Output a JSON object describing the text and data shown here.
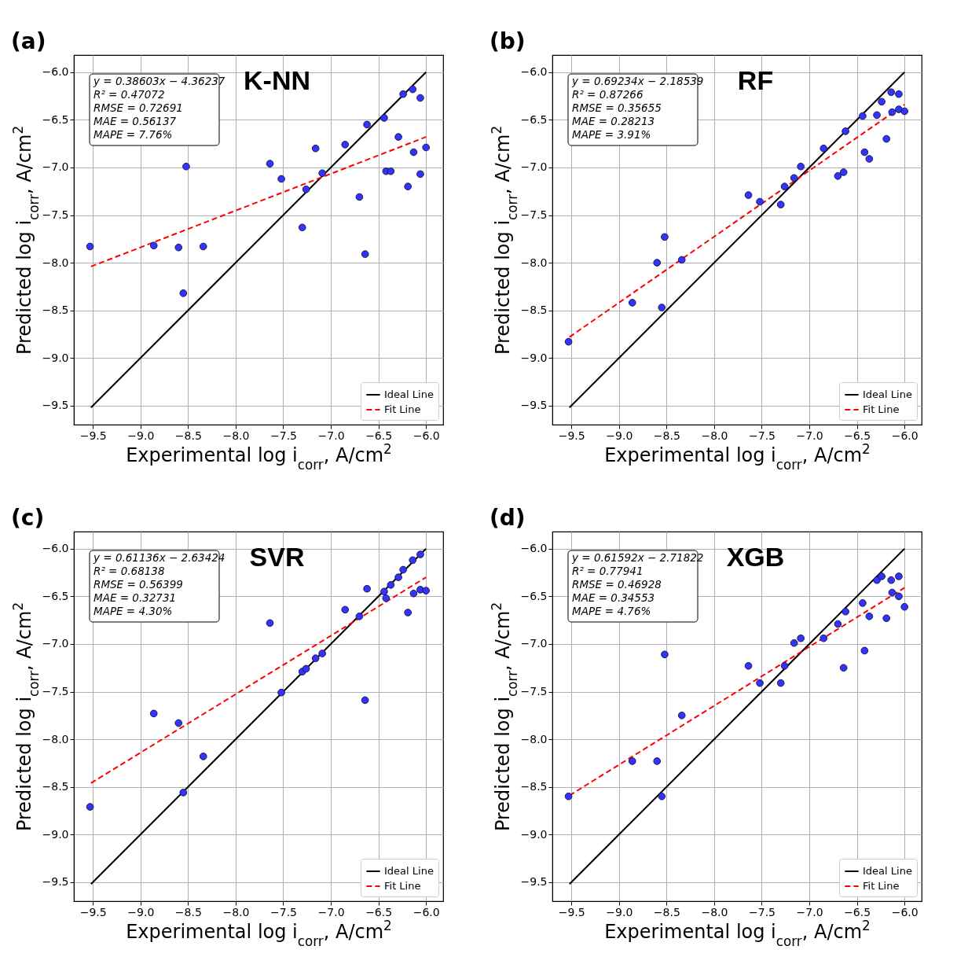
{
  "chart_data": [
    {
      "type": "scatter",
      "title": "K-NN",
      "xlabel": "Experimental log i$_{corr}$, A/cm$^{2}$",
      "ylabel": "Predicted log i$_{corr}$, A/cm$^{2}$",
      "annotations": [
        "(a)",
        "y = 0.38603x − 4.36237",
        "R² = 0.47072",
        "RMSE = 0.72691",
        "MAE = 0.56137",
        "MAPE = 7.76%"
      ],
      "xlim": [
        -9.7,
        -5.82
      ],
      "ylim": [
        -9.7,
        -5.82
      ],
      "xticks": [
        -9.5,
        {
          "value": -9,
          "label": "−9.0"
        },
        -8.5,
        {
          "value": -8,
          "label": "−8.0"
        },
        -7.5,
        {
          "value": -7,
          "label": "−7.0"
        },
        -6.5,
        {
          "value": -6,
          "label": "−6.0"
        }
      ],
      "yticks": [
        -9.5,
        {
          "value": -9,
          "label": "−9.0"
        },
        -8.5,
        {
          "value": -8,
          "label": "−8.0"
        },
        -7.5,
        {
          "value": -7,
          "label": "−7.0"
        },
        -6.5,
        {
          "value": -6,
          "label": "−6.0"
        }
      ],
      "grid": true,
      "legend": "bottom right",
      "series": [
        {
          "type": "line",
          "name": "Ideal Line",
          "color": "#000000",
          "line_style": "solid",
          "x": [
            -9.52,
            -6.0
          ],
          "values": [
            -9.52,
            -6.0
          ]
        },
        {
          "type": "line",
          "name": "Fit Line",
          "color": "#ff0000",
          "line_style": "dashed",
          "x": [
            -9.52,
            -6.0
          ],
          "values": [
            -8.04,
            -6.68
          ]
        },
        {
          "marker": "circle",
          "color": "#3333ff",
          "x": [
            -9.53,
            -8.86,
            -8.6,
            -8.34,
            -8.55,
            -8.52,
            -7.64,
            -7.52,
            -7.3,
            -7.26,
            -7.16,
            -7.09,
            -6.85,
            -6.7,
            -6.64,
            -6.62,
            -6.44,
            -6.42,
            -6.37,
            -6.29,
            -6.24,
            -6.19,
            -6.14,
            -6.13,
            -6.06,
            -6.06,
            -6.0
          ],
          "values": [
            -7.83,
            -7.82,
            -7.84,
            -7.83,
            -8.32,
            -6.99,
            -6.96,
            -7.12,
            -7.63,
            -7.23,
            -6.8,
            -7.06,
            -6.76,
            -7.31,
            -7.91,
            -6.55,
            -6.48,
            -7.04,
            -7.04,
            -6.68,
            -6.23,
            -7.2,
            -6.18,
            -6.84,
            -6.27,
            -7.07,
            -6.79
          ]
        }
      ]
    },
    {
      "type": "scatter",
      "title": "RF",
      "xlabel": "Experimental log i$_{corr}$, A/cm$^{2}$",
      "ylabel": "Predicted log i$_{corr}$, A/cm$^{2}$",
      "annotations": [
        "(b)",
        "y = 0.69234x − 2.18539",
        "R² = 0.87266",
        "RMSE = 0.35655",
        "MAE = 0.28213",
        "MAPE = 3.91%"
      ],
      "xlim": [
        -9.7,
        -5.82
      ],
      "ylim": [
        -9.7,
        -5.82
      ],
      "xticks": [
        -9.5,
        {
          "value": -9,
          "label": "−9.0"
        },
        -8.5,
        {
          "value": -8,
          "label": "−8.0"
        },
        -7.5,
        {
          "value": -7,
          "label": "−7.0"
        },
        -6.5,
        {
          "value": -6,
          "label": "−6.0"
        }
      ],
      "yticks": [
        -9.5,
        {
          "value": -9,
          "label": "−9.0"
        },
        -8.5,
        {
          "value": -8,
          "label": "−8.0"
        },
        -7.5,
        {
          "value": -7,
          "label": "−7.0"
        },
        -6.5,
        {
          "value": -6,
          "label": "−6.0"
        }
      ],
      "grid": true,
      "legend": "bottom right",
      "series": [
        {
          "type": "line",
          "name": "Ideal Line",
          "color": "#000000",
          "line_style": "solid",
          "x": [
            -9.52,
            -6.0
          ],
          "values": [
            -9.52,
            -6.0
          ]
        },
        {
          "type": "line",
          "name": "Fit Line",
          "color": "#ff0000",
          "line_style": "dashed",
          "x": [
            -9.52,
            -6.0
          ],
          "values": [
            -8.78,
            -6.34
          ]
        },
        {
          "marker": "circle",
          "color": "#3333ff",
          "x": [
            -9.53,
            -8.86,
            -8.6,
            -8.34,
            -8.55,
            -8.52,
            -7.64,
            -7.52,
            -7.3,
            -7.26,
            -7.16,
            -7.09,
            -6.85,
            -6.7,
            -6.64,
            -6.62,
            -6.44,
            -6.42,
            -6.37,
            -6.29,
            -6.24,
            -6.19,
            -6.14,
            -6.13,
            -6.06,
            -6.06,
            -6.0
          ],
          "values": [
            -8.83,
            -8.42,
            -8.0,
            -7.97,
            -8.47,
            -7.73,
            -7.29,
            -7.36,
            -7.39,
            -7.2,
            -7.11,
            -6.99,
            -6.8,
            -7.09,
            -7.05,
            -6.62,
            -6.46,
            -6.84,
            -6.91,
            -6.45,
            -6.31,
            -6.7,
            -6.21,
            -6.42,
            -6.23,
            -6.39,
            -6.41
          ]
        }
      ]
    },
    {
      "type": "scatter",
      "title": "SVR",
      "xlabel": "Experimental log i$_{corr}$, A/cm$^{2}$",
      "ylabel": "Predicted log i$_{corr}$, A/cm$^{2}$",
      "annotations": [
        "(c)",
        "y = 0.61136x − 2.63424",
        "R² = 0.68138",
        "RMSE = 0.56399",
        "MAE = 0.32731",
        "MAPE = 4.30%"
      ],
      "xlim": [
        -9.7,
        -5.82
      ],
      "ylim": [
        -9.7,
        -5.82
      ],
      "xticks": [
        -9.5,
        {
          "value": -9,
          "label": "−9.0"
        },
        -8.5,
        {
          "value": -8,
          "label": "−8.0"
        },
        -7.5,
        {
          "value": -7,
          "label": "−7.0"
        },
        -6.5,
        {
          "value": -6,
          "label": "−6.0"
        }
      ],
      "yticks": [
        -9.5,
        {
          "value": -9,
          "label": "−9.0"
        },
        -8.5,
        {
          "value": -8,
          "label": "−8.0"
        },
        -7.5,
        {
          "value": -7,
          "label": "−7.0"
        },
        -6.5,
        {
          "value": -6,
          "label": "−6.0"
        }
      ],
      "grid": true,
      "legend": "bottom right",
      "series": [
        {
          "type": "line",
          "name": "Ideal Line",
          "color": "#000000",
          "line_style": "solid",
          "x": [
            -9.52,
            -6.0
          ],
          "values": [
            -9.52,
            -6.0
          ]
        },
        {
          "type": "line",
          "name": "Fit Line",
          "color": "#ff0000",
          "line_style": "dashed",
          "x": [
            -9.52,
            -6.0
          ],
          "values": [
            -8.46,
            -6.3
          ]
        },
        {
          "marker": "circle",
          "color": "#3333ff",
          "x": [
            -9.53,
            -8.86,
            -8.6,
            -8.34,
            -8.55,
            -7.64,
            -7.52,
            -7.3,
            -7.26,
            -7.16,
            -7.09,
            -6.85,
            -6.7,
            -6.64,
            -6.62,
            -6.44,
            -6.42,
            -6.37,
            -6.29,
            -6.24,
            -6.19,
            -6.14,
            -6.13,
            -6.06,
            -6.06,
            -6.0
          ],
          "values": [
            -8.71,
            -7.73,
            -7.83,
            -8.18,
            -8.56,
            -6.78,
            -7.51,
            -7.29,
            -7.26,
            -7.15,
            -7.1,
            -6.64,
            -6.71,
            -7.59,
            -6.42,
            -6.45,
            -6.52,
            -6.38,
            -6.3,
            -6.22,
            -6.67,
            -6.12,
            -6.47,
            -6.06,
            -6.43,
            -6.44
          ]
        }
      ]
    },
    {
      "type": "scatter",
      "title": "XGB",
      "xlabel": "Experimental log i$_{corr}$, A/cm$^{2}$",
      "ylabel": "Predicted log i$_{corr}$, A/cm$^{2}$",
      "annotations": [
        "(d)",
        "y = 0.61592x − 2.71822",
        "R² = 0.77941",
        "RMSE = 0.46928",
        "MAE = 0.34553",
        "MAPE = 4.76%"
      ],
      "xlim": [
        -9.7,
        -5.82
      ],
      "ylim": [
        -9.7,
        -5.82
      ],
      "xticks": [
        -9.5,
        {
          "value": -9,
          "label": "−9.0"
        },
        -8.5,
        {
          "value": -8,
          "label": "−8.0"
        },
        -7.5,
        {
          "value": -7,
          "label": "−7.0"
        },
        -6.5,
        {
          "value": -6,
          "label": "−6.0"
        }
      ],
      "yticks": [
        -9.5,
        {
          "value": -9,
          "label": "−9.0"
        },
        -8.5,
        {
          "value": -8,
          "label": "−8.0"
        },
        -7.5,
        {
          "value": -7,
          "label": "−7.0"
        },
        -6.5,
        {
          "value": -6,
          "label": "−6.0"
        }
      ],
      "grid": true,
      "legend": "bottom right",
      "series": [
        {
          "type": "line",
          "name": "Ideal Line",
          "color": "#000000",
          "line_style": "solid",
          "x": [
            -9.52,
            -6.0
          ],
          "values": [
            -9.52,
            -6.0
          ]
        },
        {
          "type": "line",
          "name": "Fit Line",
          "color": "#ff0000",
          "line_style": "dashed",
          "x": [
            -9.52,
            -6.0
          ],
          "values": [
            -8.59,
            -6.41
          ]
        },
        {
          "marker": "circle",
          "color": "#3333ff",
          "x": [
            -9.53,
            -8.86,
            -8.6,
            -8.34,
            -8.55,
            -8.52,
            -7.64,
            -7.52,
            -7.3,
            -7.26,
            -7.16,
            -7.09,
            -6.85,
            -6.7,
            -6.64,
            -6.62,
            -6.44,
            -6.42,
            -6.37,
            -6.29,
            -6.24,
            -6.19,
            -6.14,
            -6.13,
            -6.06,
            -6.06,
            -6.0
          ],
          "values": [
            -8.6,
            -8.23,
            -8.23,
            -7.75,
            -8.6,
            -7.11,
            -7.23,
            -7.41,
            -7.41,
            -7.23,
            -6.99,
            -6.94,
            -6.94,
            -6.79,
            -7.25,
            -6.66,
            -6.57,
            -7.07,
            -6.71,
            -6.33,
            -6.29,
            -6.73,
            -6.33,
            -6.46,
            -6.29,
            -6.5,
            -6.61
          ]
        }
      ]
    }
  ]
}
